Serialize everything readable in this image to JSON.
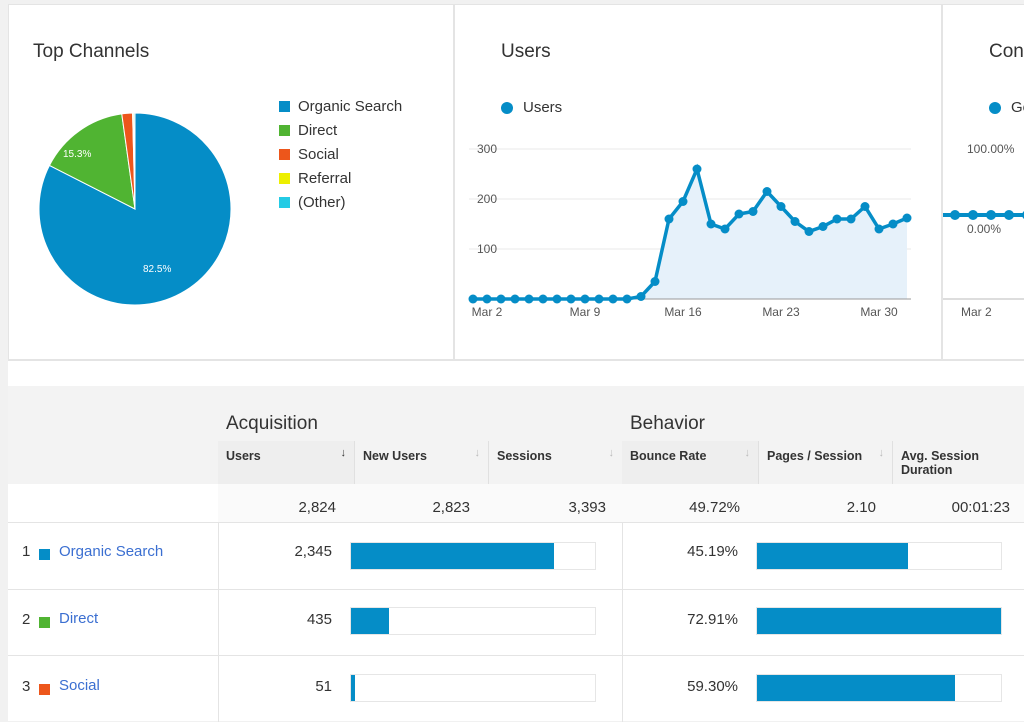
{
  "top_channels": {
    "title": "Top Channels",
    "legend": [
      {
        "label": "Organic Search",
        "color": "#058dc7"
      },
      {
        "label": "Direct",
        "color": "#50b432"
      },
      {
        "label": "Social",
        "color": "#ed561b"
      },
      {
        "label": "Referral",
        "color": "#edef00"
      },
      {
        "label": "(Other)",
        "color": "#24cbe5"
      }
    ],
    "slice_labels": [
      "82.5%",
      "15.3%"
    ]
  },
  "users_chart": {
    "title": "Users",
    "legend_label": "Users",
    "y_ticks": [
      "300",
      "200",
      "100"
    ],
    "x_ticks": [
      "Mar 2",
      "Mar 9",
      "Mar 16",
      "Mar 23",
      "Mar 30"
    ]
  },
  "conversions_chart": {
    "title": "Con",
    "legend_label": "Go",
    "y_ticks": [
      "100.00%",
      "0.00%"
    ],
    "x_ticks": [
      "Mar 2"
    ]
  },
  "table": {
    "acquisition_label": "Acquisition",
    "behavior_label": "Behavior",
    "columns": {
      "users": "Users",
      "new_users": "New Users",
      "sessions": "Sessions",
      "bounce_rate": "Bounce Rate",
      "pages_session": "Pages / Session",
      "avg_duration": "Avg. Session Duration"
    },
    "totals": {
      "users": "2,824",
      "new_users": "2,823",
      "sessions": "3,393",
      "bounce_rate": "49.72%",
      "pages_session": "2.10",
      "avg_duration": "00:01:23"
    },
    "rows": [
      {
        "index": "1",
        "channel": "Organic Search",
        "color": "#058dc7",
        "users": "2,345",
        "users_fraction": 0.83,
        "bounce_rate": "45.19%",
        "bounce_fraction": 0.62
      },
      {
        "index": "2",
        "channel": "Direct",
        "color": "#50b432",
        "users": "435",
        "users_fraction": 0.154,
        "bounce_rate": "72.91%",
        "bounce_fraction": 1.0
      },
      {
        "index": "3",
        "channel": "Social",
        "color": "#ed561b",
        "users": "51",
        "users_fraction": 0.018,
        "bounce_rate": "59.30%",
        "bounce_fraction": 0.813
      }
    ]
  },
  "chart_data": [
    {
      "type": "pie",
      "title": "Top Channels",
      "categories": [
        "Organic Search",
        "Direct",
        "Social",
        "Referral",
        "(Other)"
      ],
      "values": [
        82.5,
        15.3,
        1.8,
        0.2,
        0.2
      ],
      "colors": [
        "#058dc7",
        "#50b432",
        "#ed561b",
        "#edef00",
        "#24cbe5"
      ]
    },
    {
      "type": "area",
      "title": "Users",
      "series": [
        {
          "name": "Users",
          "values": [
            0,
            0,
            0,
            0,
            0,
            0,
            0,
            0,
            0,
            0,
            0,
            0,
            5,
            35,
            160,
            195,
            260,
            150,
            140,
            170,
            175,
            215,
            185,
            155,
            135,
            145,
            160,
            160,
            185,
            140,
            150,
            162
          ]
        }
      ],
      "x": [
        "Mar 1",
        "Mar 2",
        "Mar 3",
        "Mar 4",
        "Mar 5",
        "Mar 6",
        "Mar 7",
        "Mar 8",
        "Mar 9",
        "Mar 10",
        "Mar 11",
        "Mar 12",
        "Mar 13",
        "Mar 14",
        "Mar 15",
        "Mar 16",
        "Mar 17",
        "Mar 18",
        "Mar 19",
        "Mar 20",
        "Mar 21",
        "Mar 22",
        "Mar 23",
        "Mar 24",
        "Mar 25",
        "Mar 26",
        "Mar 27",
        "Mar 28",
        "Mar 29",
        "Mar 30",
        "Mar 31",
        "Apr 1"
      ],
      "ylim": [
        0,
        300
      ],
      "grid": true,
      "legend": "top-left"
    }
  ]
}
